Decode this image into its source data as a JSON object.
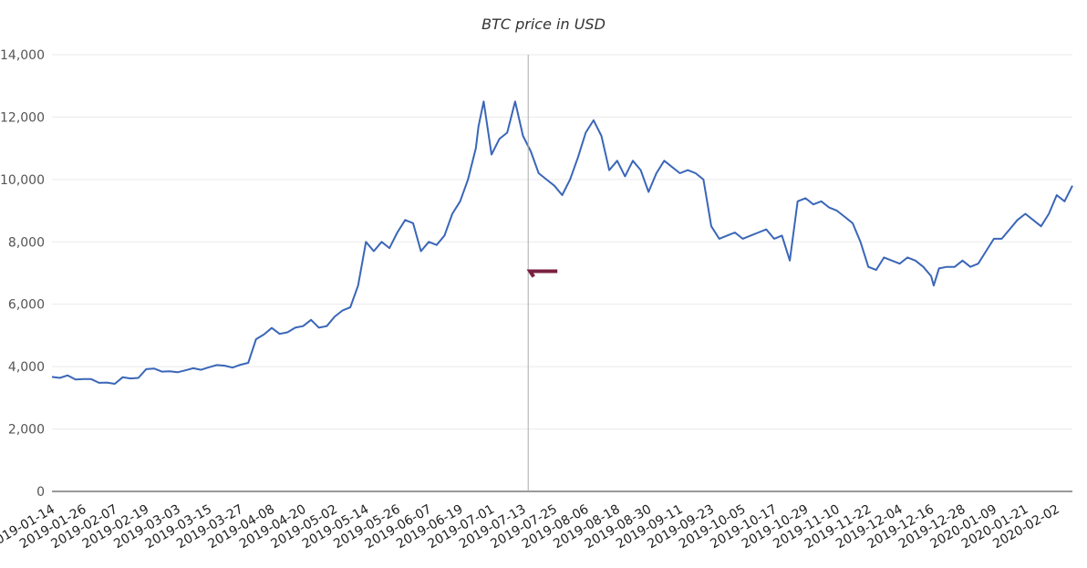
{
  "chart_data": {
    "type": "line",
    "title": "BTC price in USD",
    "xlabel": "",
    "ylabel": "",
    "ylim": [
      0,
      14000
    ],
    "y_ticks": [
      0,
      2000,
      4000,
      6000,
      8000,
      10000,
      12000,
      14000
    ],
    "y_tick_labels": [
      "0",
      "2,000",
      "4,000",
      "6,000",
      "8,000",
      "10,000",
      "12,000",
      "14,000"
    ],
    "x_range": [
      "2019-01-14",
      "2020-02-08"
    ],
    "x_ticks": [
      "2019-01-14",
      "2019-01-26",
      "2019-02-07",
      "2019-02-19",
      "2019-03-03",
      "2019-03-15",
      "2019-03-27",
      "2019-04-08",
      "2019-04-20",
      "2019-05-02",
      "2019-05-14",
      "2019-05-26",
      "2019-06-07",
      "2019-06-19",
      "2019-07-01",
      "2019-07-13",
      "2019-07-25",
      "2019-08-06",
      "2019-08-18",
      "2019-08-30",
      "2019-09-11",
      "2019-09-23",
      "2019-10-05",
      "2019-10-17",
      "2019-10-29",
      "2019-11-10",
      "2019-11-22",
      "2019-12-04",
      "2019-12-16",
      "2019-12-28",
      "2020-01-09",
      "2020-01-21",
      "2020-02-02"
    ],
    "crosshair_date": "2019-07-15",
    "grid": true,
    "legend": "none",
    "colors": {
      "line": "#3a66b8",
      "crosshair": "#aaaaaa",
      "marker": "#7a2040"
    },
    "series": [
      {
        "x": [
          "2019-01-14",
          "2019-01-17",
          "2019-01-20",
          "2019-01-23",
          "2019-01-26",
          "2019-01-29",
          "2019-02-01",
          "2019-02-04",
          "2019-02-07",
          "2019-02-10",
          "2019-02-13",
          "2019-02-16",
          "2019-02-19",
          "2019-02-22",
          "2019-02-25",
          "2019-02-28",
          "2019-03-03",
          "2019-03-06",
          "2019-03-09",
          "2019-03-12",
          "2019-03-15",
          "2019-03-18",
          "2019-03-21",
          "2019-03-24",
          "2019-03-27",
          "2019-03-30",
          "2019-04-02",
          "2019-04-05",
          "2019-04-08",
          "2019-04-11",
          "2019-04-14",
          "2019-04-17",
          "2019-04-20",
          "2019-04-23",
          "2019-04-26",
          "2019-04-29",
          "2019-05-02",
          "2019-05-05",
          "2019-05-08",
          "2019-05-11",
          "2019-05-14",
          "2019-05-17",
          "2019-05-20",
          "2019-05-23",
          "2019-05-26",
          "2019-05-29",
          "2019-06-01",
          "2019-06-04",
          "2019-06-07",
          "2019-06-10",
          "2019-06-13",
          "2019-06-16",
          "2019-06-19",
          "2019-06-22",
          "2019-06-25",
          "2019-06-26",
          "2019-06-28",
          "2019-07-01",
          "2019-07-04",
          "2019-07-07",
          "2019-07-10",
          "2019-07-13",
          "2019-07-16",
          "2019-07-19",
          "2019-07-22",
          "2019-07-25",
          "2019-07-28",
          "2019-07-31",
          "2019-08-03",
          "2019-08-06",
          "2019-08-09",
          "2019-08-12",
          "2019-08-15",
          "2019-08-18",
          "2019-08-21",
          "2019-08-24",
          "2019-08-27",
          "2019-08-30",
          "2019-09-02",
          "2019-09-05",
          "2019-09-08",
          "2019-09-11",
          "2019-09-14",
          "2019-09-17",
          "2019-09-20",
          "2019-09-23",
          "2019-09-26",
          "2019-09-29",
          "2019-10-02",
          "2019-10-05",
          "2019-10-08",
          "2019-10-11",
          "2019-10-14",
          "2019-10-17",
          "2019-10-20",
          "2019-10-23",
          "2019-10-26",
          "2019-10-29",
          "2019-11-01",
          "2019-11-04",
          "2019-11-07",
          "2019-11-10",
          "2019-11-13",
          "2019-11-16",
          "2019-11-19",
          "2019-11-22",
          "2019-11-25",
          "2019-11-28",
          "2019-12-01",
          "2019-12-04",
          "2019-12-07",
          "2019-12-10",
          "2019-12-13",
          "2019-12-16",
          "2019-12-17",
          "2019-12-19",
          "2019-12-22",
          "2019-12-25",
          "2019-12-28",
          "2019-12-31",
          "2020-01-03",
          "2020-01-06",
          "2020-01-09",
          "2020-01-12",
          "2020-01-15",
          "2020-01-18",
          "2020-01-21",
          "2020-01-24",
          "2020-01-27",
          "2020-01-30",
          "2020-02-02",
          "2020-02-05",
          "2020-02-08"
        ],
        "y": [
          3670,
          3640,
          3720,
          3590,
          3600,
          3600,
          3480,
          3490,
          3450,
          3660,
          3620,
          3640,
          3920,
          3940,
          3840,
          3850,
          3820,
          3880,
          3950,
          3900,
          3980,
          4050,
          4030,
          3970,
          4060,
          4120,
          4880,
          5030,
          5240,
          5050,
          5100,
          5250,
          5300,
          5500,
          5250,
          5300,
          5600,
          5800,
          5900,
          6600,
          8000,
          7700,
          8000,
          7800,
          8300,
          8700,
          8600,
          7700,
          8000,
          7900,
          8200,
          8900,
          9300,
          10000,
          11000,
          11700,
          12500,
          10800,
          11300,
          11500,
          12500,
          11400,
          10900,
          10200,
          10000,
          9800,
          9500,
          10000,
          10700,
          11500,
          11900,
          11400,
          10300,
          10600,
          10100,
          10600,
          10300,
          9600,
          10200,
          10600,
          10400,
          10200,
          10300,
          10200,
          10000,
          8500,
          8100,
          8200,
          8300,
          8100,
          8200,
          8300,
          8400,
          8100,
          8200,
          7400,
          9300,
          9400,
          9200,
          9300,
          9100,
          9000,
          8800,
          8600,
          8000,
          7200,
          7100,
          7500,
          7400,
          7300,
          7500,
          7400,
          7200,
          6900,
          6600,
          7150,
          7200,
          7200,
          7400,
          7200,
          7300,
          7700,
          8100,
          8100,
          8400,
          8700,
          8900,
          8700,
          8500,
          8900,
          9500,
          9300,
          9800
        ]
      }
    ]
  }
}
